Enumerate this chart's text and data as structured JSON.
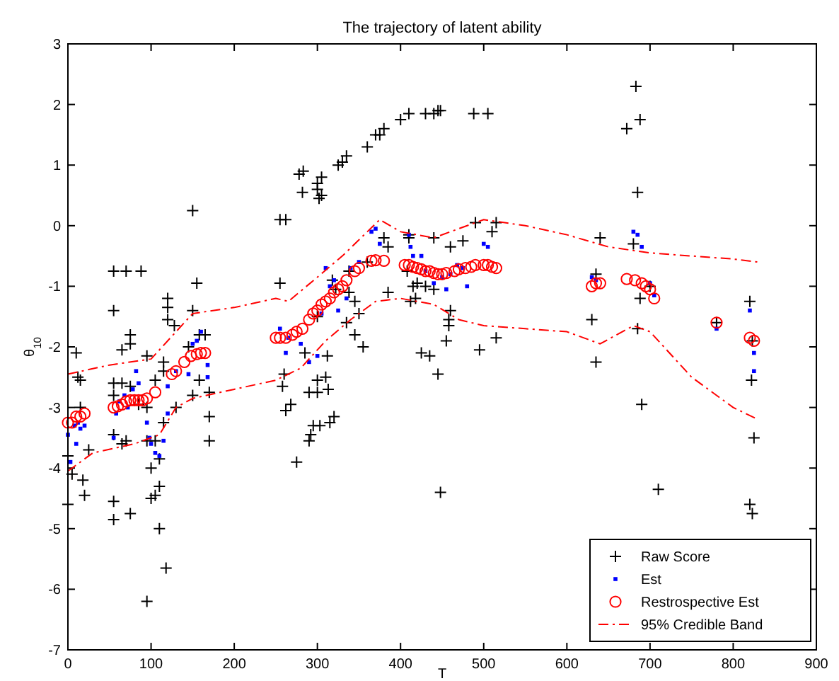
{
  "chart_data": {
    "type": "scatter",
    "title": "The trajectory of latent ability",
    "xlabel": "T",
    "ylabel": "θ$_{10}$",
    "xlim": [
      0,
      900
    ],
    "ylim": [
      -7,
      3
    ],
    "xticks": [
      0,
      100,
      200,
      300,
      400,
      500,
      600,
      700,
      800,
      900
    ],
    "yticks": [
      -7,
      -6,
      -5,
      -4,
      -3,
      -2,
      -1,
      0,
      1,
      2,
      3
    ],
    "grid": false,
    "legend": "bottom right",
    "series": [
      {
        "name": "Raw Score",
        "marker": "cross",
        "color": "#000000",
        "x": [
          0,
          0,
          5,
          10,
          12,
          15,
          15,
          18,
          20,
          25,
          55,
          70,
          55,
          55,
          55,
          55,
          55,
          55,
          65,
          65,
          65,
          70,
          75,
          75,
          75,
          75,
          88,
          85,
          95,
          95,
          95,
          105,
          105,
          100,
          100,
          105,
          95,
          110,
          110,
          110,
          115,
          115,
          115,
          118,
          120,
          120,
          120,
          128,
          130,
          145,
          150,
          150,
          150,
          155,
          158,
          158,
          165,
          170,
          170,
          170,
          255,
          262,
          255,
          260,
          258,
          262,
          268,
          278,
          282,
          283,
          285,
          275,
          290,
          290,
          295,
          292,
          300,
          300,
          302,
          305,
          305,
          300,
          300,
          300,
          303,
          310,
          312,
          313,
          315,
          318,
          322,
          320,
          325,
          330,
          335,
          338,
          338,
          335,
          345,
          345,
          350,
          355,
          360,
          360,
          370,
          375,
          380,
          380,
          385,
          385,
          400,
          410,
          408,
          410,
          410,
          415,
          412,
          418,
          420,
          430,
          440,
          445,
          448,
          440,
          440,
          430,
          425,
          435,
          445,
          448,
          455,
          458,
          458,
          460,
          460,
          475,
          488,
          505,
          490,
          495,
          510,
          515,
          515,
          630,
          635,
          635,
          640,
          672,
          683,
          688,
          685,
          680,
          688,
          685,
          690,
          700,
          710,
          780,
          820,
          823,
          822,
          820,
          823,
          825
        ],
        "values": [
          -3.8,
          -4.6,
          -4.1,
          -2.1,
          -2.5,
          -2.55,
          -3,
          -4.2,
          -4.45,
          -3.7,
          -0.75,
          -0.75,
          -1.4,
          -2.6,
          -2.8,
          -3.45,
          -4.55,
          -4.85,
          -2.05,
          -2.6,
          -3.6,
          -3.55,
          -1.8,
          -1.95,
          -2.65,
          -4.75,
          -0.75,
          -2.95,
          -2.15,
          -3,
          -3.55,
          -2.55,
          -3.55,
          -4,
          -4.5,
          -4.45,
          -6.2,
          -3.85,
          -4.3,
          -5,
          -2.25,
          -2.4,
          -3.25,
          -5.65,
          -1.2,
          -1.35,
          -1.55,
          -1.65,
          -3,
          -2,
          0.25,
          -1.4,
          -2.8,
          -0.95,
          -1.8,
          -2.55,
          -1.8,
          -2.75,
          -3.15,
          -3.55,
          0.1,
          0.1,
          -0.95,
          -2.45,
          -2.65,
          -3.05,
          -2.95,
          0.85,
          0.55,
          0.9,
          -2.1,
          -3.9,
          -2.75,
          -3.55,
          -3.3,
          -3.45,
          0.7,
          0.6,
          0.45,
          0.5,
          0.8,
          -1.5,
          -2.55,
          -2.75,
          -3.3,
          -2.5,
          -2.15,
          -2.7,
          -3.25,
          -0.9,
          -1.05,
          -3.15,
          1,
          1.05,
          1.15,
          -0.75,
          -1.1,
          -1.6,
          -1.25,
          -1.8,
          -1.45,
          -2,
          1.3,
          -0.6,
          1.5,
          1.5,
          1.6,
          -0.2,
          -0.35,
          -1.1,
          1.75,
          1.85,
          -0.75,
          -0.15,
          -0.2,
          -1,
          -1.25,
          -1.2,
          -0.95,
          1.85,
          1.85,
          1.9,
          1.9,
          -0.2,
          -1.05,
          -1,
          -2.1,
          -2.15,
          -2.45,
          -4.4,
          -1.9,
          -1.65,
          -1.55,
          -1.4,
          -0.35,
          -0.25,
          1.85,
          1.85,
          0.05,
          -2.05,
          -0.1,
          0.05,
          -1.85,
          -1.55,
          -0.8,
          -2.25,
          -0.2,
          1.6,
          2.3,
          1.75,
          0.55,
          -0.3,
          -1.2,
          -1.7,
          -2.95,
          -1,
          -4.35,
          -1.6,
          -1.25,
          -1.9,
          -2.55,
          -4.6,
          -4.75,
          -3.5
        ]
      },
      {
        "name": "Est",
        "marker": "square",
        "color": "#0000ff",
        "x": [
          0,
          3,
          8,
          10,
          12,
          15,
          20,
          55,
          58,
          62,
          68,
          72,
          78,
          82,
          85,
          95,
          98,
          100,
          105,
          110,
          115,
          120,
          120,
          130,
          145,
          150,
          155,
          160,
          168,
          168,
          255,
          262,
          265,
          280,
          290,
          300,
          305,
          310,
          315,
          320,
          325,
          335,
          340,
          350,
          365,
          370,
          375,
          410,
          412,
          415,
          425,
          430,
          440,
          450,
          455,
          460,
          468,
          475,
          480,
          500,
          505,
          630,
          635,
          680,
          685,
          690,
          700,
          705,
          780,
          820,
          825,
          825
        ],
        "values": [
          -3.45,
          -3.9,
          -3.3,
          -3.6,
          -3.25,
          -3.35,
          -3.3,
          -3.5,
          -3.1,
          -2.9,
          -2.8,
          -3,
          -2.7,
          -2.4,
          -2.6,
          -3.25,
          -3.5,
          -3.6,
          -3.75,
          -3.8,
          -3.55,
          -2.65,
          -3.1,
          -2.4,
          -2.45,
          -1.95,
          -1.9,
          -1.75,
          -2.3,
          -2.5,
          -1.7,
          -2.1,
          -1.85,
          -1.95,
          -2.25,
          -2.15,
          -1.45,
          -0.7,
          -1,
          -0.9,
          -1.4,
          -1.2,
          -0.7,
          -0.6,
          -0.1,
          -0.05,
          -0.3,
          -0.15,
          -0.35,
          -0.5,
          -0.5,
          -0.75,
          -0.95,
          -0.85,
          -1.05,
          -0.8,
          -0.65,
          -0.7,
          -1,
          -0.3,
          -0.35,
          -0.85,
          -0.9,
          -0.1,
          -0.15,
          -0.35,
          -0.95,
          -1.15,
          -1.7,
          -1.4,
          -2.1,
          -2.4
        ]
      },
      {
        "name": "Restrospective Est",
        "marker": "circle",
        "color": "#ff0000",
        "x": [
          0,
          5,
          10,
          15,
          20,
          55,
          60,
          65,
          70,
          75,
          80,
          85,
          90,
          95,
          105,
          125,
          130,
          140,
          148,
          155,
          160,
          165,
          250,
          255,
          262,
          270,
          275,
          282,
          290,
          295,
          300,
          305,
          310,
          315,
          320,
          325,
          330,
          335,
          345,
          350,
          365,
          370,
          380,
          405,
          410,
          415,
          420,
          425,
          430,
          435,
          440,
          445,
          450,
          455,
          465,
          470,
          478,
          485,
          490,
          500,
          505,
          510,
          515,
          630,
          635,
          640,
          672,
          682,
          690,
          695,
          700,
          705,
          780,
          820,
          825
        ],
        "values": [
          -3.25,
          -3.25,
          -3.15,
          -3.15,
          -3.1,
          -3,
          -2.98,
          -2.95,
          -2.9,
          -2.88,
          -2.88,
          -2.88,
          -2.88,
          -2.85,
          -2.75,
          -2.45,
          -2.4,
          -2.25,
          -2.15,
          -2.12,
          -2.1,
          -2.1,
          -1.85,
          -1.85,
          -1.85,
          -1.8,
          -1.75,
          -1.7,
          -1.55,
          -1.45,
          -1.4,
          -1.3,
          -1.25,
          -1.2,
          -1.1,
          -1.05,
          -1,
          -0.9,
          -0.75,
          -0.7,
          -0.58,
          -0.57,
          -0.58,
          -0.65,
          -0.65,
          -0.68,
          -0.7,
          -0.72,
          -0.75,
          -0.75,
          -0.78,
          -0.8,
          -0.8,
          -0.78,
          -0.75,
          -0.72,
          -0.7,
          -0.68,
          -0.65,
          -0.65,
          -0.65,
          -0.68,
          -0.7,
          -1,
          -0.95,
          -0.95,
          -0.88,
          -0.9,
          -0.95,
          -1,
          -1.05,
          -1.2,
          -1.6,
          -1.85,
          -1.9
        ]
      },
      {
        "name": "95% Credible Band",
        "type": "line",
        "line_style": "dashed",
        "marker": "none",
        "color": "#ff0000",
        "x": [
          0,
          50,
          100,
          130,
          150,
          200,
          250,
          265,
          300,
          330,
          360,
          375,
          400,
          440,
          470,
          500,
          550,
          600,
          650,
          700,
          800,
          830
        ],
        "values": [
          -2.45,
          -2.3,
          -2.2,
          -1.75,
          -1.45,
          -1.35,
          -1.2,
          -1.25,
          -0.85,
          -0.5,
          -0.1,
          0.1,
          -0.1,
          -0.2,
          -0.05,
          0.1,
          0,
          -0.15,
          -0.35,
          -0.45,
          -0.55,
          -0.6
        ]
      },
      {
        "type": "line",
        "line_style": "dashed",
        "marker": "none",
        "color": "#ff0000",
        "x": [
          0,
          30,
          80,
          110,
          130,
          150,
          200,
          250,
          280,
          310,
          340,
          370,
          400,
          440,
          470,
          500,
          550,
          600,
          640,
          680,
          700,
          750,
          800,
          830
        ],
        "values": [
          -4.05,
          -3.75,
          -3.6,
          -3.45,
          -3,
          -2.85,
          -2.7,
          -2.55,
          -2.35,
          -1.9,
          -1.55,
          -1.25,
          -1.2,
          -1.3,
          -1.55,
          -1.65,
          -1.7,
          -1.75,
          -1.95,
          -1.65,
          -1.75,
          -2.5,
          -3,
          -3.2
        ]
      }
    ]
  }
}
